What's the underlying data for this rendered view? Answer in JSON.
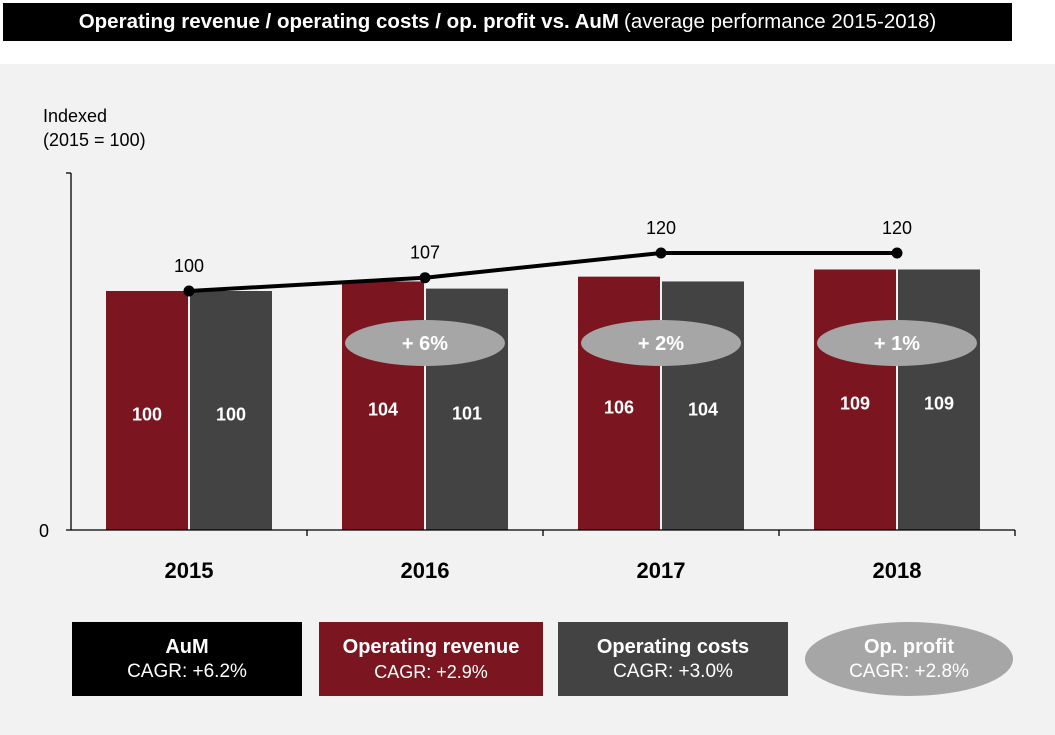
{
  "header": {
    "title_bold": "Operating revenue / operating costs / op. profit vs. AuM",
    "title_rest": "(average performance 2015-2018)"
  },
  "colors": {
    "revenue": "#7b1520",
    "costs": "#434343",
    "aum": "#000000",
    "profit_ellipse": "#a6a6a6"
  },
  "chart_data": {
    "type": "bar",
    "ylabel": "Indexed\n(2015 = 100)",
    "y_origin_label": "0",
    "ylim": [
      0,
      145
    ],
    "categories": [
      "2015",
      "2016",
      "2017",
      "2018"
    ],
    "series": [
      {
        "name": "Operating revenue",
        "type": "bar",
        "values": [
          100,
          104,
          106,
          109
        ],
        "labels": [
          "100",
          "104",
          "106",
          "109"
        ]
      },
      {
        "name": "Operating costs",
        "type": "bar",
        "values": [
          100,
          101,
          104,
          109
        ],
        "labels": [
          "100",
          "101",
          "104",
          "109"
        ]
      },
      {
        "name": "AuM",
        "type": "line",
        "values": [
          100,
          107,
          120,
          120
        ],
        "labels": [
          "100",
          "107",
          "120",
          "120"
        ]
      }
    ],
    "profit_change_labels": [
      "",
      "+ 6%",
      "+ 2%",
      "+ 1%"
    ]
  },
  "legend": {
    "aum": {
      "title": "AuM",
      "cagr": "CAGR: +6.2%"
    },
    "revenue": {
      "title": "Operating revenue",
      "cagr": "CAGR: +2.9%"
    },
    "costs": {
      "title": "Operating costs",
      "cagr": "CAGR: +3.0%"
    },
    "profit": {
      "title": "Op. profit",
      "cagr": "CAGR: +2.8%"
    }
  }
}
